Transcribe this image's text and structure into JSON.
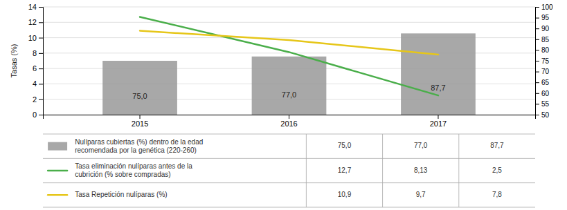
{
  "chart_data": {
    "type": "bar",
    "ylabel": "Tasas (%)",
    "categories": [
      "2015",
      "2016",
      "2017"
    ],
    "ylim": [
      0,
      14
    ],
    "yticks": [
      0,
      2,
      4,
      6,
      8,
      10,
      12,
      14
    ],
    "y2lim": [
      50,
      100
    ],
    "y2ticks": [
      50,
      55,
      60,
      65,
      70,
      75,
      80,
      85,
      90,
      95,
      100
    ],
    "grid": true,
    "series": [
      {
        "name": "Nulíparas cubiertas (%) dentro de la edad\nrecomendada por la genética (220-260)",
        "type": "bar",
        "axis": "y2",
        "color": "#999999",
        "values": [
          75.0,
          77.0,
          87.7
        ],
        "value_labels": [
          "75,0",
          "77,0",
          "87,7"
        ],
        "data_labels": true
      },
      {
        "name": "Tasa eliminación nulíparas antes de la\ncubrición (% sobre compradas)",
        "type": "line",
        "color": "#4aae4a",
        "values": [
          12.7,
          8.13,
          2.5
        ],
        "value_labels": [
          "12,7",
          "8,13",
          "2,5"
        ]
      },
      {
        "name": "Tasa Repetición nulíparas (%)",
        "type": "line",
        "color": "#e6c619",
        "values": [
          10.9,
          9.7,
          7.8
        ],
        "value_labels": [
          "10,9",
          "9,7",
          "7,8"
        ]
      }
    ]
  }
}
